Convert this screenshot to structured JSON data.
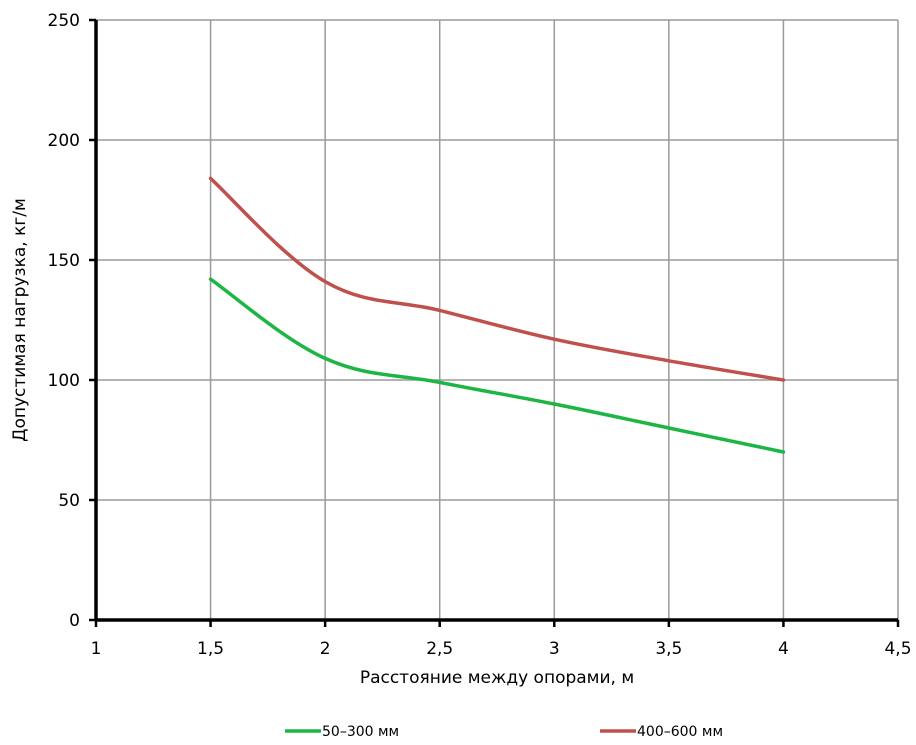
{
  "chart_data": {
    "type": "line",
    "title": "",
    "xlabel": "Расстояние между опорами, м",
    "ylabel": "Допустимая нагрузка, кг/м",
    "xlim": [
      1,
      4.5
    ],
    "ylim": [
      0,
      250
    ],
    "x_ticks": [
      "1",
      "1,5",
      "2",
      "2,5",
      "3",
      "3,5",
      "4",
      "4,5"
    ],
    "y_ticks": [
      "0",
      "50",
      "100",
      "150",
      "200",
      "250"
    ],
    "grid": true,
    "legend_position": "bottom",
    "series": [
      {
        "name": "50–300 мм",
        "color": "#1db544",
        "x": [
          1.5,
          2,
          2.5,
          3,
          3.5,
          4
        ],
        "y": [
          142,
          109,
          99,
          90,
          80,
          70
        ]
      },
      {
        "name": "400–600 мм",
        "color": "#c0504d",
        "x": [
          1.5,
          2,
          2.5,
          3,
          3.5,
          4
        ],
        "y": [
          184,
          141,
          129,
          117,
          108,
          100
        ]
      }
    ]
  }
}
